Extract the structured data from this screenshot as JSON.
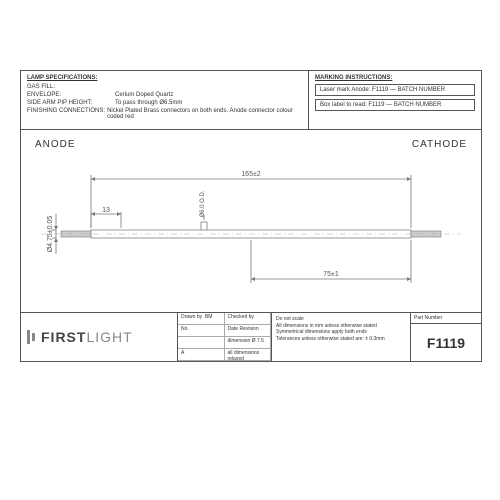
{
  "specs": {
    "heading": "LAMP SPECIFICATIONS:",
    "rows": [
      {
        "label": "GAS FILL:",
        "value": ""
      },
      {
        "label": "ENVELOPE:",
        "value": "Cerium Doped Quartz"
      },
      {
        "label": "SIDE ARM PIP HEIGHT:",
        "value": "To pass through Ø6.5mm"
      },
      {
        "label": "FINISHING CONNECTIONS:",
        "value": "Nickel Plated Brass connectors on both ends. Anode connector colour coded red"
      }
    ]
  },
  "marking": {
    "heading": "MARKING INSTRUCTIONS:",
    "line1": "Laser mark Anode: F1119 — BATCH NUMBER",
    "line2": "Box label to read: F1119 — BATCH NUMBER"
  },
  "drawing": {
    "anode_label": "ANODE",
    "cathode_label": "CATHODE",
    "dim_length": "165±2",
    "dim_half": "75±1",
    "dim_diameter": "Ø4.75±0.05",
    "dim_end": "13",
    "dim_od": "Ø6.0 O.D.",
    "stroke_color": "#777",
    "dim_color": "#666",
    "tube_color": "#999",
    "font_size": 7
  },
  "logo": {
    "brand_a": "FIRST",
    "brand_b": "LIGHT"
  },
  "titleblock": {
    "drawn_lbl": "Drawn by",
    "drawn": "BM",
    "checked_lbl": "Checked by",
    "checked": "",
    "r1a": "No.",
    "r1b": "Date  Revision",
    "r2a": "",
    "r2b": "dimension Ø 7.5",
    "r3a": "A",
    "r3b": "all dimensions relaxed"
  },
  "notes": {
    "l1": "Do not scale",
    "l2": "All dimensions in mm unless otherwise stated",
    "l3": "Symmetrical dimensions apply both ends",
    "l4": "Tolerances unless otherwise stated are: ± 0.3mm"
  },
  "part": {
    "label": "Part Number",
    "number": "F1119"
  }
}
